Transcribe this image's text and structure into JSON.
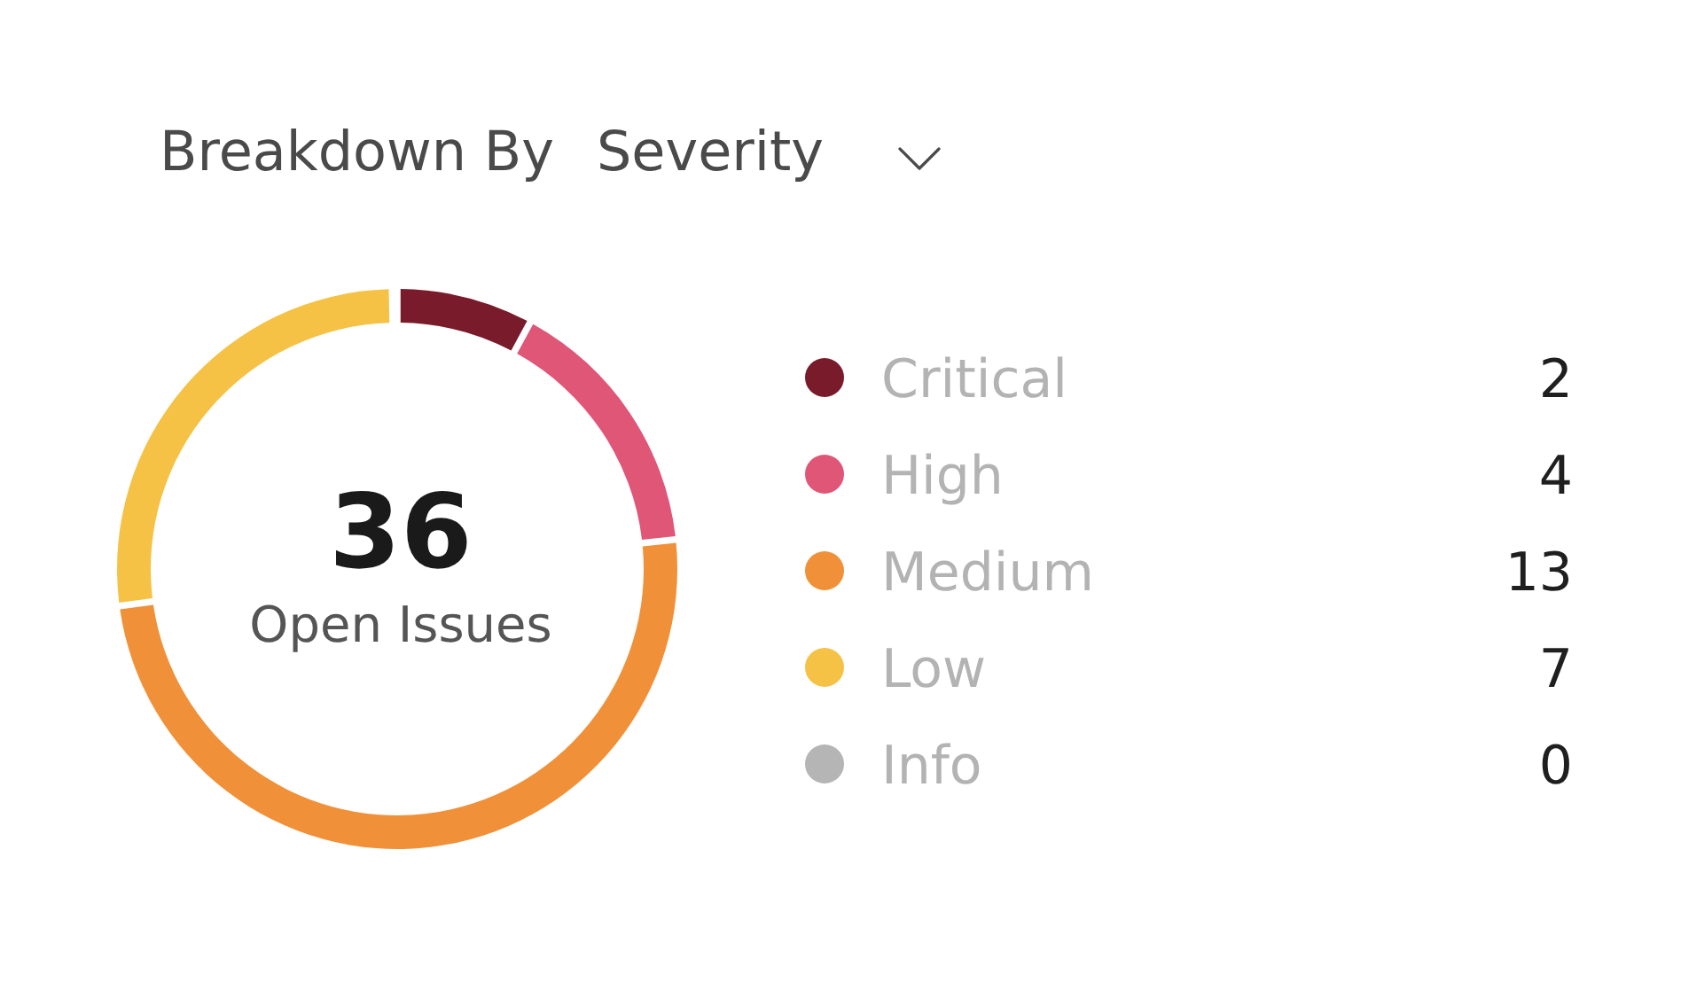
{
  "chart_data": {
    "type": "donut",
    "title": "Breakdown By",
    "subtitle": "Severity",
    "categories": [
      "Critical",
      "High",
      "Medium",
      "Low",
      "Info"
    ],
    "values": [
      2,
      4,
      13,
      7,
      0
    ],
    "value_labels": [
      "2",
      "4",
      "13",
      "7",
      "0"
    ],
    "colors": [
      "#7a1b2b",
      "#e05676",
      "#f0913a",
      "#f5c245",
      "#b5b5b5"
    ],
    "annotations": [
      "36",
      "Open Issues"
    ],
    "legend": "right"
  }
}
